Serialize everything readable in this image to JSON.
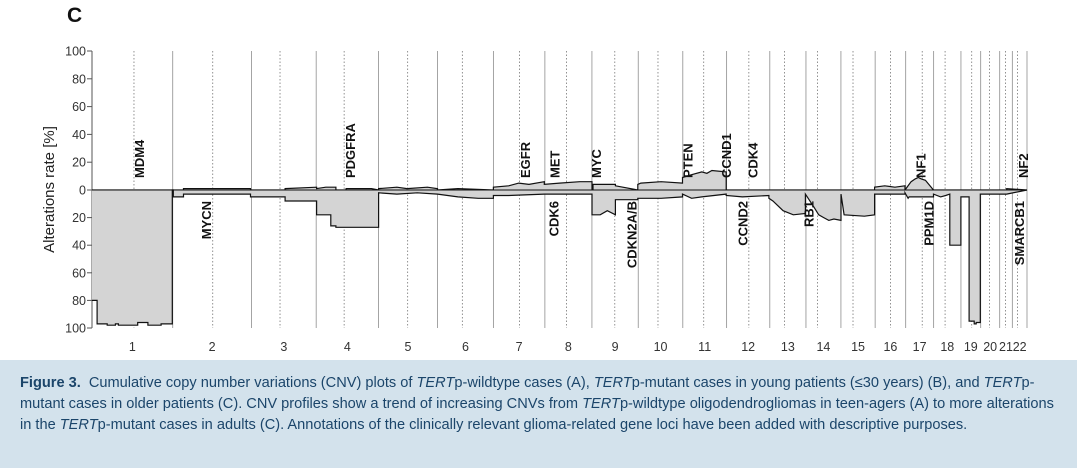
{
  "chart_data": {
    "type": "area",
    "panel_label": "C",
    "ylabel": "Alterations rate [%]",
    "xlabel": "",
    "y_tick_labels": [
      "100",
      "80",
      "60",
      "40",
      "20",
      "0",
      "20",
      "40",
      "60",
      "80",
      "100"
    ],
    "y_tick_values": [
      100,
      80,
      60,
      40,
      20,
      0,
      -20,
      -40,
      -60,
      -80,
      -100
    ],
    "ylim": [
      -100,
      100
    ],
    "grid": false,
    "legend": "none",
    "chromosomes": [
      {
        "label": "1",
        "start": 0,
        "end": 7.94
      },
      {
        "label": "2",
        "start": 7.94,
        "end": 15.69
      },
      {
        "label": "3",
        "start": 15.69,
        "end": 22.06
      },
      {
        "label": "4",
        "start": 22.06,
        "end": 28.19
      },
      {
        "label": "5",
        "start": 28.19,
        "end": 34.0
      },
      {
        "label": "6",
        "start": 34.0,
        "end": 39.5
      },
      {
        "label": "7",
        "start": 39.5,
        "end": 44.56
      },
      {
        "label": "8",
        "start": 44.56,
        "end": 49.19
      },
      {
        "label": "9",
        "start": 49.19,
        "end": 53.75
      },
      {
        "label": "10",
        "start": 53.75,
        "end": 58.13
      },
      {
        "label": "11",
        "start": 58.13,
        "end": 62.44
      },
      {
        "label": "12",
        "start": 62.44,
        "end": 66.69
      },
      {
        "label": "13",
        "start": 66.69,
        "end": 70.25
      },
      {
        "label": "14",
        "start": 70.25,
        "end": 73.69
      },
      {
        "label": "15",
        "start": 73.69,
        "end": 77.06
      },
      {
        "label": "16",
        "start": 77.06,
        "end": 80.06
      },
      {
        "label": "17",
        "start": 80.06,
        "end": 82.81
      },
      {
        "label": "18",
        "start": 82.81,
        "end": 85.5
      },
      {
        "label": "19",
        "start": 85.5,
        "end": 87.44
      },
      {
        "label": "20",
        "start": 87.44,
        "end": 89.31
      },
      {
        "label": "21",
        "start": 89.31,
        "end": 90.56
      },
      {
        "label": "22",
        "start": 90.56,
        "end": 92.0
      }
    ],
    "centromeres": [
      4.13,
      11.88,
      18.5,
      24.81,
      31.06,
      36.44,
      42.06,
      46.69,
      51.44,
      55.69,
      60.19,
      64.63,
      68.13,
      71.38,
      74.88,
      78.56,
      81.69,
      83.94,
      86.56,
      88.31,
      89.88,
      91.06
    ],
    "series": [
      {
        "name": "gain",
        "x": [
          0,
          8.0,
          8.0,
          9.0,
          9.0,
          15.6,
          15.6,
          19.0,
          19.0,
          22.1,
          22.1,
          23.0,
          24.0,
          24.0,
          25.0,
          25.0,
          27.5,
          28.2,
          28.2,
          30.0,
          31.0,
          33.0,
          34.0,
          34.0,
          36.0,
          39.5,
          39.5,
          41.0,
          42.0,
          43.0,
          44.5,
          44.5,
          46.0,
          48.0,
          49.2,
          49.2,
          49.3,
          49.3,
          51.5,
          51.5,
          53.7,
          53.7,
          54.0,
          56.0,
          58.1,
          58.1,
          59.0,
          60.0,
          60.5,
          61.0,
          62.4,
          62.4,
          64.0,
          66.6,
          66.6,
          70.2,
          70.2,
          73.7,
          73.7,
          77.0,
          77.0,
          78.0,
          79.0,
          80.0,
          80.0,
          80.4,
          80.6,
          81.0,
          81.3,
          81.6,
          82.0,
          82.8,
          82.8,
          90.0,
          90.0,
          92.0
        ],
        "values": [
          0,
          0,
          0,
          0,
          1,
          1,
          0,
          0,
          1,
          2,
          1,
          2,
          2,
          0,
          0,
          1,
          1,
          0,
          1,
          2,
          1,
          2,
          1,
          0,
          1,
          0,
          2,
          3,
          5,
          4,
          6,
          4,
          5,
          6,
          6,
          0,
          0,
          4,
          4,
          3,
          0,
          4,
          5,
          6,
          5,
          9,
          11,
          13,
          12,
          14,
          13,
          0,
          0,
          0,
          0,
          0,
          0,
          0,
          0,
          0,
          2,
          3,
          2,
          3,
          0,
          4,
          6,
          8,
          9,
          8,
          7,
          0,
          0,
          0,
          1,
          0
        ]
      },
      {
        "name": "loss",
        "x": [
          0,
          0.5,
          0.5,
          1.5,
          1.5,
          2.3,
          2.3,
          2.6,
          2.6,
          4.5,
          4.5,
          5.5,
          5.5,
          6.8,
          6.8,
          7.9,
          7.9,
          8.0,
          8.0,
          9.0,
          9.0,
          15.6,
          15.6,
          19.0,
          19.0,
          22.1,
          22.1,
          23.5,
          23.5,
          24.0,
          24.0,
          28.2,
          28.2,
          30.0,
          32.0,
          34.0,
          34.0,
          36.0,
          38.0,
          39.5,
          39.5,
          41.0,
          44.5,
          44.5,
          49.2,
          49.2,
          50.0,
          50.7,
          51.5,
          51.5,
          53.7,
          53.7,
          56.0,
          58.1,
          58.1,
          59.0,
          60.0,
          62.4,
          62.4,
          64.0,
          66.6,
          66.6,
          67.0,
          68.0,
          69.0,
          70.2,
          70.2,
          71.0,
          71.5,
          72.0,
          72.5,
          73.0,
          73.7,
          73.7,
          74.0,
          76.0,
          77.0,
          77.0,
          80.0,
          80.0,
          80.3,
          80.4,
          82.8,
          82.8,
          83.5,
          84.0,
          84.4,
          84.4,
          84.8,
          85.5,
          85.5,
          86.3,
          86.3,
          86.8,
          86.8,
          87.0,
          87.0,
          87.4,
          87.4,
          90.0,
          90.0,
          92.0
        ],
        "values": [
          -80,
          -80,
          -97,
          -97,
          -98,
          -98,
          -97,
          -97,
          -98,
          -98,
          -96,
          -96,
          -98,
          -98,
          -97,
          -97,
          0,
          0,
          -5,
          -5,
          -3,
          -3,
          -5,
          -5,
          -8,
          -8,
          -18,
          -18,
          -26,
          -26,
          -27,
          -27,
          -2,
          -3,
          -2,
          -3,
          -3,
          -5,
          -6,
          -6,
          -4,
          -4,
          -3,
          -3,
          -3,
          -18,
          -18,
          -15,
          -18,
          -7,
          -7,
          -6,
          -6,
          -5,
          -3,
          -6,
          -5,
          -3,
          -4,
          -5,
          -4,
          -6,
          -8,
          -15,
          -18,
          -17,
          -3,
          -12,
          -18,
          -20,
          -22,
          -21,
          -22,
          -3,
          -18,
          -19,
          -18,
          -3,
          -3,
          -2,
          -6,
          -5,
          -5,
          -3,
          -5,
          -4,
          -3,
          -40,
          -40,
          -40,
          -5,
          -5,
          -95,
          -95,
          -97,
          -97,
          -96,
          -96,
          -3,
          -3,
          -3,
          0
        ]
      }
    ],
    "gene_annotations": [
      {
        "label": "MDM4",
        "x": 4.6,
        "side": "top"
      },
      {
        "label": "MYCN",
        "x": 11.2,
        "side": "bottom"
      },
      {
        "label": "PDGFRA",
        "x": 25.4,
        "side": "top"
      },
      {
        "label": "EGFR",
        "x": 42.6,
        "side": "top"
      },
      {
        "label": "CDK6",
        "x": 45.4,
        "side": "bottom"
      },
      {
        "label": "MET",
        "x": 45.5,
        "side": "top"
      },
      {
        "label": "MYC",
        "x": 49.6,
        "side": "top"
      },
      {
        "label": "CDKN2A/B",
        "x": 53.1,
        "side": "bottom"
      },
      {
        "label": "PTEN",
        "x": 58.6,
        "side": "top"
      },
      {
        "label": "CCND1",
        "x": 62.4,
        "side": "top"
      },
      {
        "label": "CCND2",
        "x": 64.0,
        "side": "bottom"
      },
      {
        "label": "CDK4",
        "x": 65.0,
        "side": "top"
      },
      {
        "label": "RB1",
        "x": 70.5,
        "side": "bottom"
      },
      {
        "label": "NF1",
        "x": 81.5,
        "side": "top"
      },
      {
        "label": "PPM1D",
        "x": 82.3,
        "side": "bottom"
      },
      {
        "label": "SMARCB1",
        "x": 91.2,
        "side": "bottom"
      },
      {
        "label": "NF2",
        "x": 91.6,
        "side": "top"
      }
    ]
  },
  "caption": {
    "figure_label": "Figure 3.",
    "segments": [
      {
        "t": "Cumulative copy number variations (CNV) plots of ",
        "i": false
      },
      {
        "t": "TERT",
        "i": true
      },
      {
        "t": "p-wildtype cases (A), ",
        "i": false
      },
      {
        "t": "TERT",
        "i": true
      },
      {
        "t": "p-mutant cases in young patients (≤30 years) (B), and ",
        "i": false
      },
      {
        "t": "TERT",
        "i": true
      },
      {
        "t": "p-mutant cases in older patients (C). CNV profiles show a trend of increasing CNVs from ",
        "i": false
      },
      {
        "t": "TERT",
        "i": true
      },
      {
        "t": "p-wildtype oligodendrogliomas in teen-agers (A) to more alterations in the ",
        "i": false
      },
      {
        "t": "TERT",
        "i": true
      },
      {
        "t": "p-mutant cases in adults (C). Annotations of the clinically relevant glioma-related gene loci have been added with descriptive purposes.",
        "i": false
      }
    ]
  }
}
